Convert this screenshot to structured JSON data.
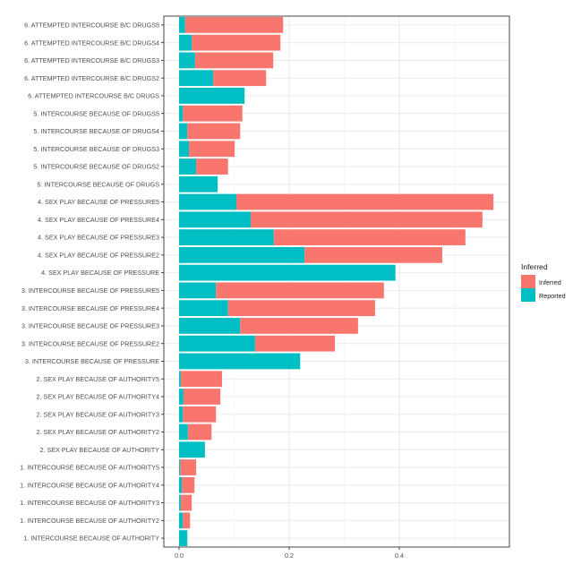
{
  "chart_data": {
    "type": "bar",
    "orientation": "horizontal",
    "stacked": true,
    "title": "",
    "xlabel": "",
    "ylabel": "",
    "xlim": [
      0,
      0.57
    ],
    "x_ticks": [
      0.0,
      0.2,
      0.4
    ],
    "x_tick_labels": [
      "0.0",
      "0.2",
      "0.4"
    ],
    "grid": true,
    "legend": {
      "title": "Inferred",
      "position": "right",
      "entries": [
        {
          "name": "Inferred",
          "color": "#F8766D"
        },
        {
          "name": "Reported",
          "color": "#00BFC4"
        }
      ]
    },
    "categories": [
      "6. ATTEMPTED INTERCOURSE B/C DRUGS5",
      "6. ATTEMPTED INTERCOURSE B/C DRUGS4",
      "6. ATTEMPTED INTERCOURSE B/C DRUGS3",
      "6. ATTEMPTED INTERCOURSE B/C DRUGS2",
      "6. ATTEMPTED INTERCOURSE B/C DRUGS",
      "5. INTERCOURSE BECAUSE OF DRUGS5",
      "5. INTERCOURSE BECAUSE OF DRUGS4",
      "5. INTERCOURSE BECAUSE OF DRUGS3",
      "5. INTERCOURSE BECAUSE OF DRUGS2",
      "5. INTERCOURSE BECAUSE OF DRUGS",
      "4. SEX PLAY BECAUSE OF PRESSURE5",
      "4. SEX PLAY BECAUSE OF PRESSURE4",
      "4. SEX PLAY BECAUSE OF PRESSURE3",
      "4. SEX PLAY BECAUSE OF PRESSURE2",
      "4. SEX PLAY BECAUSE OF PRESSURE",
      "3. INTERCOURSE BECAUSE OF PRESSURE5",
      "3. INTERCOURSE BECAUSE OF PRESSURE4",
      "3. INTERCOURSE BECAUSE OF PRESSURE3",
      "3. INTERCOURSE BECAUSE OF PRESSURE2",
      "3. INTERCOURSE BECAUSE OF PRESSURE",
      "2. SEX PLAY BECAUSE OF AUTHORITY5",
      "2. SEX PLAY BECAUSE OF AUTHORITY4",
      "2. SEX PLAY BECAUSE OF AUTHORITY3",
      "2. SEX PLAY BECAUSE OF AUTHORITY2",
      "2. SEX PLAY BECAUSE OF AUTHORITY",
      "1. INTERCOURSE BECAUSE OF AUTHORITY5",
      "1. INTERCOURSE BECAUSE OF AUTHORITY4",
      "1. INTERCOURSE BECAUSE OF AUTHORITY3",
      "1. INTERCOURSE BECAUSE OF AUTHORITY2",
      "1. INTERCOURSE BECAUSE OF AUTHORITY"
    ],
    "series": [
      {
        "name": "Reported",
        "color": "#00BFC4",
        "values": [
          0.011,
          0.023,
          0.029,
          0.062,
          0.119,
          0.007,
          0.015,
          0.018,
          0.031,
          0.07,
          0.104,
          0.13,
          0.172,
          0.228,
          0.393,
          0.067,
          0.089,
          0.111,
          0.138,
          0.22,
          0.003,
          0.008,
          0.007,
          0.016,
          0.047,
          0.002,
          0.005,
          0.003,
          0.007,
          0.015
        ]
      },
      {
        "name": "Inferred",
        "color": "#F8766D",
        "values": [
          0.178,
          0.161,
          0.142,
          0.096,
          0.0,
          0.108,
          0.096,
          0.083,
          0.058,
          0.0,
          0.467,
          0.421,
          0.348,
          0.25,
          0.0,
          0.305,
          0.267,
          0.214,
          0.145,
          0.0,
          0.075,
          0.067,
          0.06,
          0.043,
          0.0,
          0.029,
          0.023,
          0.02,
          0.013,
          0.0
        ]
      }
    ]
  }
}
